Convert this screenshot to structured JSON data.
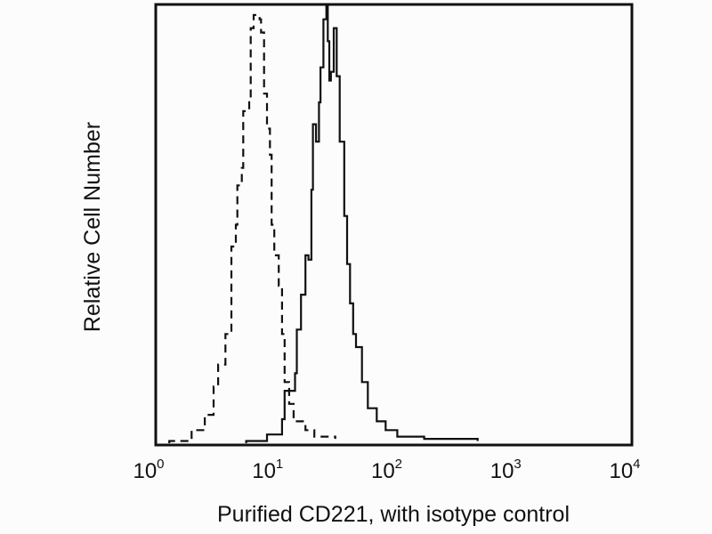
{
  "chart_data": {
    "type": "line",
    "title": "",
    "xlabel": "Purified CD221, with isotype control",
    "ylabel": "Relative Cell Number",
    "xscale": "log",
    "xlim": [
      1,
      10000
    ],
    "ylim": [
      0,
      100
    ],
    "grid": false,
    "legend": "none",
    "x_ticks": [
      {
        "base": "10",
        "exp": "0",
        "value": 1
      },
      {
        "base": "10",
        "exp": "1",
        "value": 10
      },
      {
        "base": "10",
        "exp": "2",
        "value": 100
      },
      {
        "base": "10",
        "exp": "3",
        "value": 1000
      },
      {
        "base": "10",
        "exp": "4",
        "value": 10000
      }
    ],
    "series": [
      {
        "name": "isotype control",
        "style": "dashed",
        "color": "#111111",
        "x": [
          1.3,
          2.0,
          2.58,
          3.06,
          3.34,
          3.85,
          4.32,
          4.71,
          4.85,
          5.28,
          5.43,
          6.1,
          6.28,
          6.64,
          7.45,
          7.67,
          8.12,
          8.6,
          9.1,
          9.4,
          9.9,
          10.8,
          11.5,
          12.1,
          13.2,
          14.4,
          18.1,
          21.5,
          32.2
        ],
        "y": [
          0.5,
          3,
          6.5,
          13,
          18,
          25,
          45,
          50,
          59,
          63,
          76,
          79,
          95,
          98,
          97,
          94,
          80,
          72,
          66,
          50,
          43,
          36,
          25,
          14,
          9,
          5,
          3,
          1.5,
          1
        ]
      },
      {
        "name": "Purified CD221",
        "style": "solid",
        "color": "#111111",
        "x": [
          5.75,
          8.6,
          11.5,
          12.1,
          14.8,
          15.3,
          16.6,
          18.1,
          19.2,
          20.3,
          20.9,
          22.2,
          23.5,
          24.2,
          25.6,
          27.1,
          27.9,
          28.7,
          29.6,
          31.3,
          33.1,
          35.1,
          38.3,
          40.5,
          42.9,
          45.5,
          48.1,
          54,
          60.5,
          71.9,
          85.4,
          107,
          180,
          506
        ],
        "y": [
          0.5,
          2,
          5.5,
          12,
          16,
          26,
          34,
          43,
          42,
          58,
          73,
          69,
          78,
          86,
          97,
          100,
          92,
          83,
          85,
          95,
          84,
          69,
          52,
          41,
          32,
          25,
          22,
          14,
          8,
          5,
          3,
          1.5,
          1,
          0.5
        ]
      }
    ]
  }
}
